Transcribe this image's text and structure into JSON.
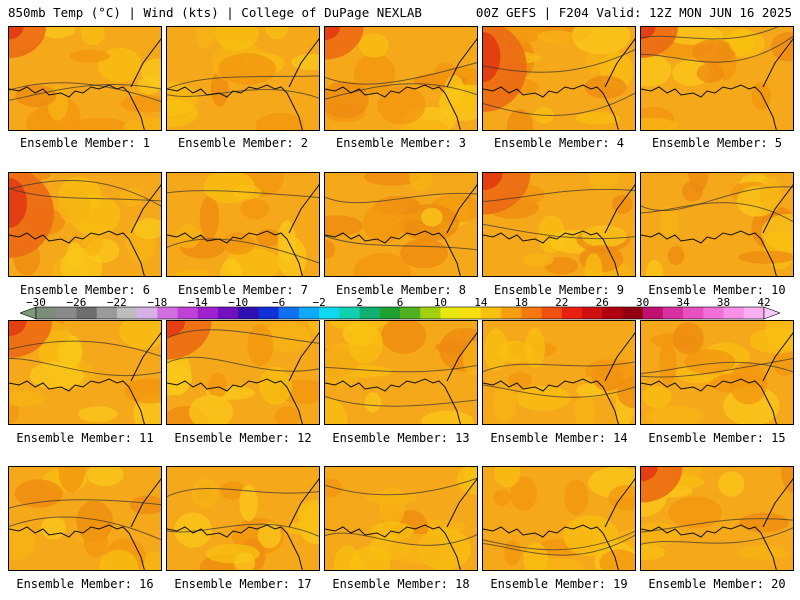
{
  "header": {
    "left": "850mb Temp (°C) | Wind (kts) | College of DuPage NEXLAB",
    "right": "00Z GEFS | F204 Valid: 12Z MON JUN 16 2025"
  },
  "members": [
    {
      "label": "Ensemble Member: 1",
      "hot": "nw",
      "warmth": 0.3
    },
    {
      "label": "Ensemble Member: 2",
      "hot": "none",
      "warmth": 0.25
    },
    {
      "label": "Ensemble Member: 3",
      "hot": "nw",
      "warmth": 0.35
    },
    {
      "label": "Ensemble Member: 4",
      "hot": "w",
      "warmth": 0.55
    },
    {
      "label": "Ensemble Member: 5",
      "hot": "nw",
      "warmth": 0.3
    },
    {
      "label": "Ensemble Member: 6",
      "hot": "w",
      "warmth": 0.6
    },
    {
      "label": "Ensemble Member: 7",
      "hot": "none",
      "warmth": 0.3
    },
    {
      "label": "Ensemble Member: 8",
      "hot": "none",
      "warmth": 0.3
    },
    {
      "label": "Ensemble Member: 9",
      "hot": "nw",
      "warmth": 0.65
    },
    {
      "label": "Ensemble Member: 10",
      "hot": "none",
      "warmth": 0.2
    },
    {
      "label": "Ensemble Member: 11",
      "hot": "nw",
      "warmth": 0.5
    },
    {
      "label": "Ensemble Member: 12",
      "hot": "nw",
      "warmth": 0.55
    },
    {
      "label": "Ensemble Member: 13",
      "hot": "none",
      "warmth": 0.15
    },
    {
      "label": "Ensemble Member: 14",
      "hot": "none",
      "warmth": 0.15
    },
    {
      "label": "Ensemble Member: 15",
      "hot": "none",
      "warmth": 0.2
    },
    {
      "label": "Ensemble Member: 16",
      "hot": "none",
      "warmth": 0.35
    },
    {
      "label": "Ensemble Member: 17",
      "hot": "none",
      "warmth": 0.3
    },
    {
      "label": "Ensemble Member: 18",
      "hot": "none",
      "warmth": 0.35
    },
    {
      "label": "Ensemble Member: 19",
      "hot": "none",
      "warmth": 0.3
    },
    {
      "label": "Ensemble Member: 20",
      "hot": "nw",
      "warmth": 0.45
    }
  ],
  "colorbar": {
    "labels": [
      "−30",
      "−26",
      "−22",
      "−18",
      "−14",
      "−10",
      "−6",
      "−2",
      "2",
      "6",
      "10",
      "14",
      "18",
      "22",
      "26",
      "30",
      "34",
      "38",
      "42"
    ],
    "colors": [
      "#7a8e7a",
      "#8a8a8a",
      "#6e6e6e",
      "#9a9a9a",
      "#bdbdbd",
      "#d8b0e8",
      "#d070e0",
      "#c040d8",
      "#a020d0",
      "#7010c0",
      "#3010b0",
      "#1030d8",
      "#1070f0",
      "#10a8f8",
      "#10d8f0",
      "#10d0b0",
      "#10b070",
      "#20a030",
      "#50b020",
      "#a0d010",
      "#e8e810",
      "#f8e010",
      "#f8c010",
      "#f8a010",
      "#f87810",
      "#f05010",
      "#e82010",
      "#d01010",
      "#b00010",
      "#900010",
      "#c01070",
      "#d830a0",
      "#e850c0",
      "#f070d8",
      "#f890e8",
      "#f8b0f0"
    ],
    "end_left_color": "#7a9a7a",
    "end_right_color": "#f8c8f8"
  }
}
